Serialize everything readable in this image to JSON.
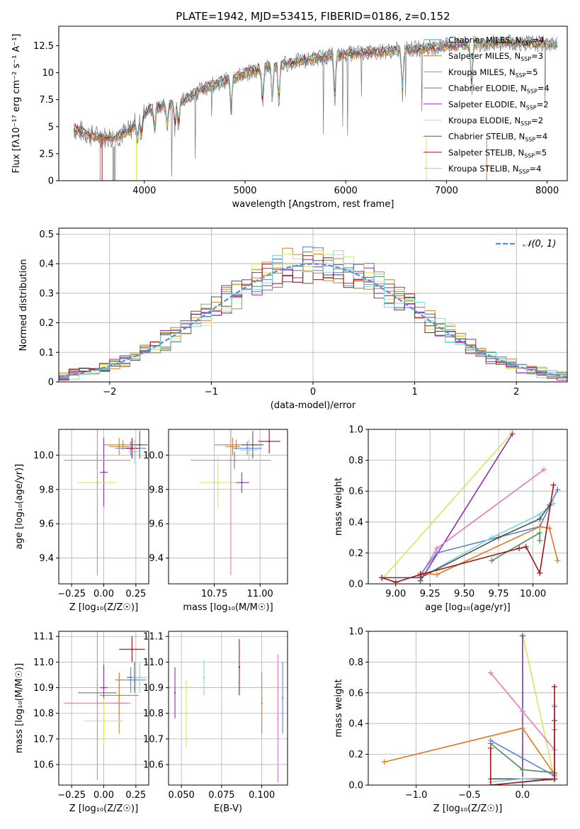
{
  "figure": {
    "title": "PLATE=1942, MJD=53415, FIBERID=0186, z=0.152"
  },
  "colors": {
    "Chabrier MILES": "#5b84d6",
    "Salpeter MILES": "#e07a1f",
    "Kroupa MILES": "#c98a2b",
    "Chabrier ELODIE": "#5a8a5e",
    "Salpeter ELODIE": "#8e2fb0",
    "Kroupa ELODIE": "#d4e85a",
    "Chabrier STELIB": "#555555",
    "Salpeter STELIB": "#a1141b",
    "Kroupa STELIB": "#80d8e0",
    "pink": "#e377c2",
    "data": "#777777",
    "normal_curve": "#5b8fd6"
  },
  "chart_data": [
    {
      "id": "spectrum",
      "type": "line",
      "title": "PLATE=1942, MJD=53415, FIBERID=0186, z=0.152",
      "xlabel": "wavelength [Angstrom, rest frame]",
      "ylabel": "Flux [fλ10⁻¹⁷ erg cm⁻² s⁻¹ A⁻¹]",
      "xlim": [
        3150,
        8200
      ],
      "ylim": [
        0,
        14.3
      ],
      "xticks": [
        4000,
        5000,
        6000,
        7000,
        8000
      ],
      "yticks": [
        0.0,
        2.5,
        5.0,
        7.5,
        10.0,
        12.5
      ],
      "grid": false,
      "legend_position": "top-right",
      "legend": [
        "Chabrier MILES, N_SSP=4",
        "Salpeter MILES, N_SSP=3",
        "Kroupa MILES, N_SSP=5",
        "Chabrier ELODIE, N_SSP=4",
        "Salpeter ELODIE, N_SSP=2",
        "Kroupa ELODIE, N_SSP=2",
        "Chabrier STELIB, N_SSP=4",
        "Salpeter STELIB, N_SSP=5",
        "Kroupa STELIB, N_SSP=4"
      ],
      "continuum_x": [
        3300,
        3500,
        3700,
        3850,
        3950,
        4050,
        4200,
        4400,
        4600,
        4900,
        5200,
        5500,
        5800,
        6100,
        6400,
        6700,
        7000,
        7300,
        7600,
        7900,
        8100
      ],
      "continuum_y": [
        4.8,
        4.1,
        4.0,
        4.6,
        5.8,
        6.6,
        7.0,
        7.5,
        8.6,
        9.6,
        10.5,
        11.0,
        11.5,
        11.8,
        12.0,
        12.2,
        12.5,
        12.7,
        12.8,
        12.7,
        12.6
      ],
      "absorption_lines": [
        3934,
        3969,
        4102,
        4227,
        4305,
        4340,
        4861,
        5175,
        5270,
        5335,
        5892,
        6563,
        7250
      ]
    },
    {
      "id": "residuals",
      "type": "line",
      "xlabel": "(data-model)/error",
      "ylabel": "Normed distribution",
      "xlim": [
        -2.5,
        2.5
      ],
      "ylim": [
        0,
        0.52
      ],
      "xticks": [
        -2,
        -1,
        0,
        1,
        2
      ],
      "yticks": [
        0.0,
        0.1,
        0.2,
        0.3,
        0.4,
        0.5
      ],
      "grid": true,
      "legend_position": "top-right",
      "legend": [
        "𝒩(0, 1)"
      ],
      "bin_width": 0.1
    },
    {
      "id": "age_vs_Z",
      "type": "scatter",
      "xlabel": "Z [log₁₀(Z/Z☉)]",
      "ylabel": "age  [log₁₀(age/yr)]",
      "xlim": [
        -0.35,
        0.35
      ],
      "ylim": [
        9.25,
        10.15
      ],
      "xticks": [
        -0.25,
        0.0,
        0.25
      ],
      "xticklabels": [
        "−0.25",
        "0.00",
        "0.25"
      ],
      "yticks": [
        9.4,
        9.6,
        9.8,
        10.0
      ],
      "yticklabels": [
        "9.4",
        "9.6",
        "9.8",
        "10.0"
      ],
      "grid": true,
      "points": [
        {
          "c": "Chabrier MILES",
          "x": 0.21,
          "y": 10.04,
          "xerr": 0.12,
          "yerr": 0.04
        },
        {
          "c": "Salpeter MILES",
          "x": 0.15,
          "y": 10.06,
          "xerr": 0.15,
          "yerr": 0.03
        },
        {
          "c": "Kroupa MILES",
          "x": 0.12,
          "y": 10.05,
          "xerr": 0.08,
          "yerr": 0.05
        },
        {
          "c": "Chabrier ELODIE",
          "x": -0.05,
          "y": 9.97,
          "xerr": 0.15,
          "yerr": 0.05
        },
        {
          "c": "Salpeter ELODIE",
          "x": 0.0,
          "y": 9.9,
          "xerr": 0.03,
          "yerr": 0.2
        },
        {
          "c": "Kroupa ELODIE",
          "x": -0.05,
          "y": 9.84,
          "xerr": 0.15,
          "yerr": 0.03
        },
        {
          "c": "Chabrier STELIB",
          "x": 0.28,
          "y": 10.06,
          "xerr": 0.06,
          "yerr": 0.08
        },
        {
          "c": "Salpeter STELIB",
          "x": 0.22,
          "y": 10.04,
          "xerr": 0.05,
          "yerr": 0.06
        },
        {
          "c": "Kroupa STELIB",
          "x": 0.24,
          "y": 10.02,
          "xerr": 0.05,
          "yerr": 0.07
        },
        {
          "c": "pink",
          "x": -0.05,
          "y": 9.97,
          "xerr": 0.26,
          "yerr": 0.67
        }
      ]
    },
    {
      "id": "age_vs_mass",
      "type": "scatter",
      "xlabel": "mass [log₁₀(M/M☉)]",
      "ylabel": "",
      "xlim": [
        10.5,
        11.15
      ],
      "ylim": [
        9.25,
        10.15
      ],
      "xticks": [
        10.75,
        11.0
      ],
      "xticklabels": [
        "10.75",
        "11.00"
      ],
      "yticks": [
        9.4,
        9.6,
        9.8,
        10.0
      ],
      "yticklabels": [
        "9.4",
        "9.6",
        "9.8",
        "10.0"
      ],
      "grid": true,
      "points": [
        {
          "c": "Chabrier MILES",
          "x": 10.93,
          "y": 10.04,
          "xerr": 0.08,
          "yerr": 0.04
        },
        {
          "c": "Salpeter MILES",
          "x": 10.87,
          "y": 10.06,
          "xerr": 0.12,
          "yerr": 0.03
        },
        {
          "c": "Kroupa MILES",
          "x": 10.85,
          "y": 10.05,
          "xerr": 0.04,
          "yerr": 0.05
        },
        {
          "c": "Chabrier ELODIE",
          "x": 10.86,
          "y": 9.97,
          "xerr": 0.04,
          "yerr": 0.05
        },
        {
          "c": "Salpeter ELODIE",
          "x": 10.9,
          "y": 9.84,
          "xerr": 0.04,
          "yerr": 0.06
        },
        {
          "c": "Kroupa ELODIE",
          "x": 10.77,
          "y": 9.84,
          "xerr": 0.1,
          "yerr": 0.15
        },
        {
          "c": "Chabrier STELIB",
          "x": 10.96,
          "y": 10.06,
          "xerr": 0.06,
          "yerr": 0.08
        },
        {
          "c": "Salpeter STELIB",
          "x": 11.05,
          "y": 10.08,
          "xerr": 0.06,
          "yerr": 0.07
        },
        {
          "c": "Kroupa STELIB",
          "x": 10.94,
          "y": 10.03,
          "xerr": 0.05,
          "yerr": 0.06
        },
        {
          "c": "pink",
          "x": 10.84,
          "y": 9.97,
          "xerr": 0.22,
          "yerr": 0.67
        }
      ]
    },
    {
      "id": "weight_vs_age",
      "type": "line",
      "xlabel": "age  [log₁₀(age/yr)]",
      "ylabel": "mass weight",
      "xlim": [
        8.8,
        10.25
      ],
      "ylim": [
        0,
        1.0
      ],
      "xticks": [
        9.0,
        9.25,
        9.5,
        9.75,
        10.0
      ],
      "xticklabels": [
        "9.00",
        "9.25",
        "9.50",
        "9.75",
        "10.00"
      ],
      "yticks": [
        0.0,
        0.2,
        0.4,
        0.6,
        0.8,
        1.0
      ],
      "yticklabels": [
        "0.0",
        "0.2",
        "0.4",
        "0.6",
        "0.8",
        "1.0"
      ],
      "grid": true,
      "series": [
        {
          "c": "Kroupa ELODIE",
          "x": [
            8.9,
            9.85
          ],
          "y": [
            0.03,
            0.98
          ]
        },
        {
          "c": "Salpeter ELODIE",
          "x": [
            9.18,
            9.85
          ],
          "y": [
            0.02,
            0.97
          ]
        },
        {
          "c": "pink",
          "x": [
            9.18,
            9.3,
            10.08
          ],
          "y": [
            0.05,
            0.23,
            0.74
          ]
        },
        {
          "c": "Chabrier MILES",
          "x": [
            9.18,
            9.3,
            10.05,
            10.18
          ],
          "y": [
            0.06,
            0.2,
            0.37,
            0.61
          ]
        },
        {
          "c": "Kroupa STELIB",
          "x": [
            9.18,
            9.7,
            10.05,
            10.15
          ],
          "y": [
            0.04,
            0.3,
            0.45,
            0.52
          ]
        },
        {
          "c": "Chabrier STELIB",
          "x": [
            8.9,
            9.18,
            9.75,
            10.05,
            10.12
          ],
          "y": [
            0.04,
            0.04,
            0.3,
            0.42,
            0.51
          ]
        },
        {
          "c": "Salpeter MILES",
          "x": [
            9.18,
            9.3,
            10.05,
            10.12,
            10.18
          ],
          "y": [
            0.07,
            0.06,
            0.37,
            0.36,
            0.15
          ]
        },
        {
          "c": "Chabrier ELODIE",
          "x": [
            9.7,
            10.05,
            10.05
          ],
          "y": [
            0.15,
            0.33,
            0.28
          ]
        },
        {
          "c": "Salpeter STELIB",
          "x": [
            8.9,
            9.0,
            9.18,
            9.9,
            9.95,
            10.05,
            10.15
          ],
          "y": [
            0.04,
            0.01,
            0.06,
            0.23,
            0.24,
            0.07,
            0.64
          ]
        }
      ]
    },
    {
      "id": "mass_vs_Z",
      "type": "scatter",
      "xlabel": "Z [log₁₀(Z/Z☉)]",
      "ylabel": "mass [log₁₀(M/M☉)]",
      "xlim": [
        -0.35,
        0.35
      ],
      "ylim": [
        10.52,
        11.12
      ],
      "xticks": [
        -0.25,
        0.0,
        0.25
      ],
      "xticklabels": [
        "−0.25",
        "0.00",
        "0.25"
      ],
      "yticks": [
        10.6,
        10.7,
        10.8,
        10.9,
        11.0,
        11.1
      ],
      "yticklabels": [
        "10.6",
        "10.7",
        "10.8",
        "10.9",
        "11.0",
        "11.1"
      ],
      "grid": true,
      "points": [
        {
          "c": "Chabrier MILES",
          "x": 0.21,
          "y": 10.93,
          "xerr": 0.12,
          "yerr": 0.05
        },
        {
          "c": "Salpeter MILES",
          "x": 0.12,
          "y": 10.87,
          "xerr": 0.15,
          "yerr": 0.08
        },
        {
          "c": "Kroupa MILES",
          "x": 0.12,
          "y": 10.84,
          "xerr": 0.05,
          "yerr": 0.12
        },
        {
          "c": "Chabrier ELODIE",
          "x": -0.05,
          "y": 10.88,
          "xerr": 0.15,
          "yerr": 0.05
        },
        {
          "c": "Salpeter ELODIE",
          "x": 0.0,
          "y": 10.9,
          "xerr": 0.03,
          "yerr": 0.09
        },
        {
          "c": "Kroupa ELODIE",
          "x": 0.0,
          "y": 10.77,
          "xerr": 0.15,
          "yerr": 0.09
        },
        {
          "c": "Chabrier STELIB",
          "x": 0.24,
          "y": 10.94,
          "xerr": 0.06,
          "yerr": 0.06
        },
        {
          "c": "Salpeter STELIB",
          "x": 0.22,
          "y": 11.05,
          "xerr": 0.1,
          "yerr": 0.05
        },
        {
          "c": "Kroupa STELIB",
          "x": 0.28,
          "y": 10.94,
          "xerr": 0.06,
          "yerr": 0.06
        },
        {
          "c": "pink",
          "x": -0.05,
          "y": 10.84,
          "xerr": 0.26,
          "yerr": 0.3
        }
      ]
    },
    {
      "id": "mass_vs_EBV",
      "type": "scatter",
      "xlabel": "E(B-V)",
      "ylabel": "",
      "xlim": [
        0.042,
        0.116
      ],
      "ylim": [
        10.52,
        11.12
      ],
      "xticks": [
        0.05,
        0.075,
        0.1
      ],
      "xticklabels": [
        "0.050",
        "0.075",
        "0.100"
      ],
      "yticks": [
        10.6,
        10.7,
        10.8,
        10.9,
        11.0,
        11.1
      ],
      "yticklabels": [
        "10.6",
        "10.7",
        "10.8",
        "10.9",
        "11.0",
        "11.1"
      ],
      "grid": true,
      "points": [
        {
          "c": "Salpeter ELODIE",
          "x": 0.046,
          "y": 10.88,
          "xerr": 0,
          "yerr": 0.1
        },
        {
          "c": "Kroupa ELODIE",
          "x": 0.053,
          "y": 10.8,
          "xerr": 0,
          "yerr": 0.13
        },
        {
          "c": "Kroupa STELIB",
          "x": 0.064,
          "y": 10.94,
          "xerr": 0,
          "yerr": 0.07
        },
        {
          "c": "Salpeter STELIB",
          "x": 0.086,
          "y": 10.98,
          "xerr": 0,
          "yerr": 0.11
        },
        {
          "c": "Salpeter MILES",
          "x": 0.1,
          "y": 10.84,
          "xerr": 0,
          "yerr": 0.12
        },
        {
          "c": "pink",
          "x": 0.11,
          "y": 10.78,
          "xerr": 0,
          "yerr": 0.25
        },
        {
          "c": "Chabrier MILES",
          "x": 0.113,
          "y": 10.86,
          "xerr": 0,
          "yerr": 0.14
        }
      ]
    },
    {
      "id": "weight_vs_Z",
      "type": "line",
      "xlabel": "Z [log₁₀(Z/Z☉)]",
      "ylabel": "mass weight",
      "xlim": [
        -1.45,
        0.42
      ],
      "ylim": [
        0,
        1.0
      ],
      "xticks": [
        -1.0,
        -0.5,
        0.0
      ],
      "xticklabels": [
        "−1.0",
        "−0.5",
        "0.0"
      ],
      "yticks": [
        0.0,
        0.2,
        0.4,
        0.6,
        0.8,
        1.0
      ],
      "yticklabels": [
        "0.0",
        "0.2",
        "0.4",
        "0.6",
        "0.8",
        "1.0"
      ],
      "grid": true,
      "series": [
        {
          "c": "Kroupa ELODIE",
          "x": [
            0.0,
            0.3
          ],
          "y": [
            0.98,
            0.04
          ]
        },
        {
          "c": "Salpeter ELODIE",
          "x": [
            0.0,
            0.0,
            0.3
          ],
          "y": [
            0.97,
            0.02,
            0.04
          ]
        },
        {
          "c": "pink",
          "x": [
            -0.3,
            0.0,
            0.3
          ],
          "y": [
            0.73,
            0.48,
            0.23
          ]
        },
        {
          "c": "Salpeter MILES",
          "x": [
            -1.3,
            0.0,
            0.3,
            0.3
          ],
          "y": [
            0.15,
            0.37,
            0.07,
            0.36
          ]
        },
        {
          "c": "Chabrier MILES",
          "x": [
            -0.3,
            0.3,
            0.3
          ],
          "y": [
            0.29,
            0.06,
            0.51
          ]
        },
        {
          "c": "Chabrier ELODIE",
          "x": [
            -0.3,
            0.0,
            0.3
          ],
          "y": [
            0.27,
            0.1,
            0.08
          ]
        },
        {
          "c": "Chabrier STELIB",
          "x": [
            -0.3,
            0.0,
            0.3,
            0.3
          ],
          "y": [
            0.04,
            0.04,
            0.04,
            0.42
          ]
        },
        {
          "c": "Kroupa STELIB",
          "x": [
            -0.3,
            0.0,
            0.3,
            0.3
          ],
          "y": [
            0.02,
            0.04,
            0.03,
            0.52
          ]
        },
        {
          "c": "Salpeter STELIB",
          "x": [
            -0.3,
            -0.3,
            0.3,
            0.3
          ],
          "y": [
            0.24,
            0.0,
            0.04,
            0.64
          ]
        }
      ]
    }
  ]
}
